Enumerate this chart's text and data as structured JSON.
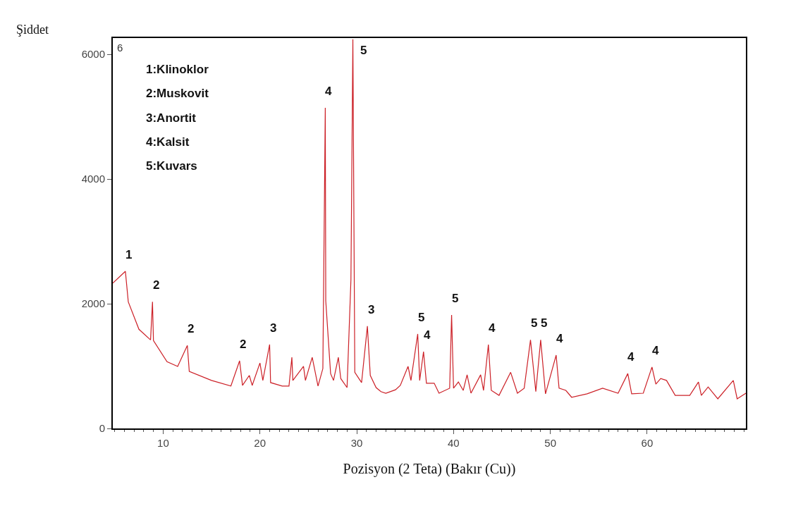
{
  "chart_data": {
    "type": "line",
    "xlabel": "Pozisyon (2 Teta) (Bakır (Cu))",
    "ylabel": "Şiddet",
    "xlim": [
      4.8,
      70.2
    ],
    "xticks": [
      10,
      20,
      30,
      40,
      50,
      60
    ],
    "ylim": [
      0,
      6260
    ],
    "yticks": [
      0,
      2000,
      4000,
      6000
    ],
    "marker": "none",
    "line_style": "solid",
    "series": [
      {
        "color": "#cc2027",
        "x": [
          4.8,
          6.1,
          6.4,
          7.5,
          8.7,
          8.9,
          9.0,
          10.4,
          11.5,
          12.5,
          12.7,
          15.0,
          17.0,
          17.9,
          18.2,
          18.9,
          19.2,
          20.0,
          20.3,
          21.0,
          21.1,
          22.3,
          23.0,
          23.3,
          23.4,
          24.5,
          24.7,
          25.4,
          26.0,
          26.5,
          26.75,
          26.8,
          27.3,
          27.6,
          28.1,
          28.35,
          29.0,
          29.4,
          29.6,
          29.8,
          30.5,
          31.1,
          31.4,
          32.0,
          32.5,
          33.0,
          34.0,
          34.5,
          35.3,
          35.6,
          36.3,
          36.5,
          36.9,
          37.2,
          38.0,
          38.5,
          39.6,
          39.8,
          40.0,
          40.5,
          41.0,
          41.4,
          41.8,
          42.8,
          43.1,
          43.6,
          43.9,
          44.7,
          45.9,
          46.6,
          47.3,
          47.95,
          48.5,
          49.0,
          49.5,
          50.6,
          50.9,
          51.6,
          52.2,
          53.8,
          55.4,
          57.0,
          58.0,
          58.4,
          59.6,
          60.5,
          60.9,
          61.4,
          62.0,
          62.9,
          64.4,
          65.3,
          65.6,
          66.3,
          67.3,
          68.9,
          69.3,
          70.2
        ],
        "values": [
          2330,
          2520,
          2030,
          1590,
          1420,
          2030,
          1410,
          1070,
          995,
          1330,
          915,
          770,
          680,
          1085,
          690,
          850,
          690,
          1050,
          770,
          1345,
          735,
          680,
          680,
          1140,
          770,
          995,
          770,
          1140,
          680,
          960,
          5140,
          2045,
          880,
          770,
          1140,
          800,
          655,
          2385,
          6240,
          900,
          735,
          1640,
          850,
          655,
          590,
          565,
          620,
          690,
          995,
          770,
          1515,
          770,
          1230,
          725,
          725,
          565,
          645,
          1820,
          645,
          745,
          610,
          860,
          565,
          860,
          610,
          1345,
          610,
          530,
          900,
          565,
          645,
          1420,
          590,
          1420,
          555,
          1175,
          645,
          610,
          500,
          555,
          645,
          565,
          880,
          555,
          565,
          985,
          710,
          800,
          770,
          530,
          530,
          745,
          530,
          665,
          475,
          770,
          475,
          565
        ]
      }
    ],
    "annotations": [
      "6",
      "1:Klinoklor",
      "2:Muskovit",
      "3:Anortit",
      "4:Kalsit",
      "5:Kuvars",
      {
        "text": "1",
        "x": 6.1,
        "y": 2520
      },
      {
        "text": "2",
        "x": 8.9,
        "y": 2030
      },
      {
        "text": "2",
        "x": 12.5,
        "y": 1330
      },
      {
        "text": "2",
        "x": 17.9,
        "y": 1085
      },
      {
        "text": "3",
        "x": 21.0,
        "y": 1345
      },
      {
        "text": "4",
        "x": 26.75,
        "y": 5140
      },
      {
        "text": "5",
        "x": 29.6,
        "y": 6240
      },
      {
        "text": "3",
        "x": 31.1,
        "y": 1640
      },
      {
        "text": "5",
        "x": 36.3,
        "y": 1515
      },
      {
        "text": "4",
        "x": 36.9,
        "y": 1230
      },
      {
        "text": "5",
        "x": 39.8,
        "y": 1820
      },
      {
        "text": "4",
        "x": 43.6,
        "y": 1345
      },
      {
        "text": "5",
        "x": 47.95,
        "y": 1420
      },
      {
        "text": "5",
        "x": 49.0,
        "y": 1420
      },
      {
        "text": "4",
        "x": 50.6,
        "y": 1175
      },
      {
        "text": "4",
        "x": 58.0,
        "y": 880
      },
      {
        "text": "4",
        "x": 60.5,
        "y": 985
      }
    ]
  }
}
